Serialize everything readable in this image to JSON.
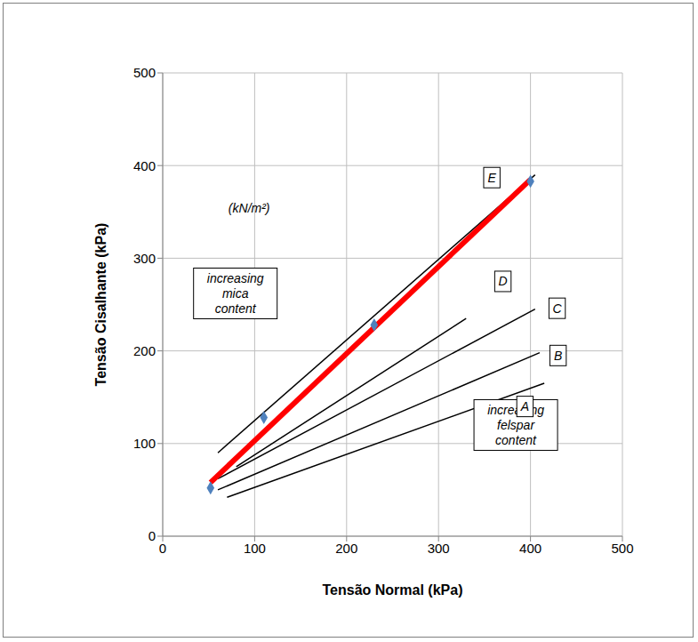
{
  "chart_data": {
    "type": "scatter",
    "x_label": "Tensão Normal (kPa)",
    "y_label": "Tensão Cisalhante (kPa)",
    "xlim": [
      0,
      500
    ],
    "ylim": [
      0,
      500
    ],
    "xticks": [
      0,
      100,
      200,
      300,
      400,
      500
    ],
    "yticks": [
      0,
      100,
      200,
      300,
      400,
      500
    ],
    "grid": true,
    "series": [
      {
        "name": "A",
        "type": "line",
        "color": "#000000",
        "line_style": "solid",
        "x": [
          70,
          415
        ],
        "values": [
          42,
          165
        ]
      },
      {
        "name": "B",
        "type": "line",
        "color": "#000000",
        "line_style": "solid",
        "x": [
          60,
          410
        ],
        "values": [
          50,
          198
        ]
      },
      {
        "name": "C",
        "type": "line",
        "color": "#000000",
        "line_style": "solid",
        "x": [
          60,
          405
        ],
        "values": [
          62,
          245
        ]
      },
      {
        "name": "D",
        "type": "line",
        "color": "#000000",
        "line_style": "solid",
        "x": [
          80,
          330
        ],
        "values": [
          75,
          235
        ]
      },
      {
        "name": "E",
        "type": "line",
        "color": "#000000",
        "line_style": "solid",
        "x": [
          60,
          405
        ],
        "values": [
          90,
          390
        ]
      },
      {
        "type": "line",
        "color": "#ff0000",
        "line_style": "thick",
        "x": [
          52,
          400
        ],
        "values": [
          58,
          385
        ]
      },
      {
        "type": "scatter",
        "color": "#4f81bd",
        "marker": "diamond",
        "x": [
          52,
          110,
          230,
          400
        ],
        "values": [
          52,
          128,
          228,
          383
        ]
      }
    ],
    "annotations": [
      {
        "text": "(kN/m²)",
        "x": 94,
        "y": 354
      },
      {
        "text": "increasing mica content",
        "x": 79,
        "y": 262
      },
      {
        "text": "increasing felspar content",
        "x": 384,
        "y": 120
      },
      {
        "text": "A",
        "x": 394,
        "y": 140
      },
      {
        "text": "B",
        "x": 430,
        "y": 195
      },
      {
        "text": "C",
        "x": 429,
        "y": 246
      },
      {
        "text": "D",
        "x": 370,
        "y": 275
      },
      {
        "text": "E",
        "x": 358,
        "y": 387
      }
    ]
  }
}
